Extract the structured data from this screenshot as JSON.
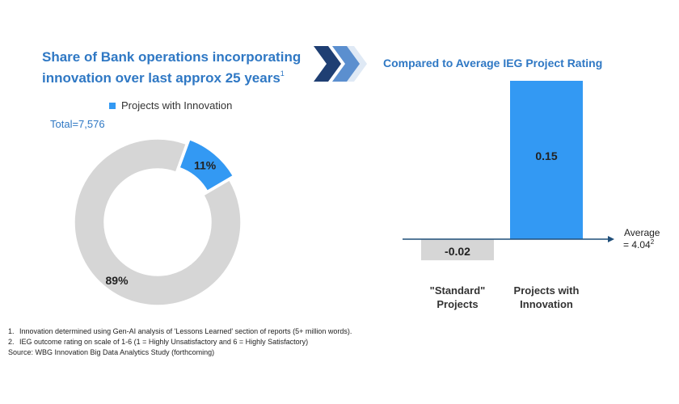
{
  "left": {
    "title_line1": "Share of Bank operations incorporating",
    "title_line2": "innovation over last approx 25 years",
    "title_sup": "1",
    "total": "Total=7,576"
  },
  "right": {
    "title": "Compared to Average IEG Project Rating"
  },
  "colors": {
    "accent": "#2f78c4",
    "innovation": "#3399f3",
    "other": "#d6d6d6",
    "axis": "#1f4e79"
  },
  "chart_data": [
    {
      "type": "pie",
      "title": "",
      "legend": [
        "Projects with Innovation"
      ],
      "legend_position": "top",
      "slices": [
        {
          "label": "Projects with Innovation",
          "value": 11,
          "text": "11%"
        },
        {
          "label": "",
          "value": 89,
          "text": "89%"
        }
      ]
    },
    {
      "type": "bar",
      "title": "Compared to Average IEG Project Rating",
      "categories": [
        "\"Standard\" Projects",
        "Projects with Innovation"
      ],
      "category_lines": [
        [
          "\"Standard\"",
          "Projects"
        ],
        [
          "Projects with",
          "Innovation"
        ]
      ],
      "values": [
        -0.02,
        0.15
      ],
      "value_labels": [
        "-0.02",
        "0.15"
      ],
      "baseline_label_line1": "Average",
      "baseline_label_line2": "= 4.04",
      "baseline_label_sup": "2",
      "ylim": [
        -0.03,
        0.16
      ]
    }
  ],
  "footnotes": [
    {
      "num": "1.",
      "text": "Innovation determined using Gen-AI analysis of 'Lessons Learned' section of reports (5+ million words)."
    },
    {
      "num": "2.",
      "text": "IEG outcome rating on scale of 1-6 (1 = Highly Unsatisfactory and 6 = Highly Satisfactory)"
    }
  ],
  "source": "Source: WBG Innovation Big Data Analytics Study (forthcoming)"
}
